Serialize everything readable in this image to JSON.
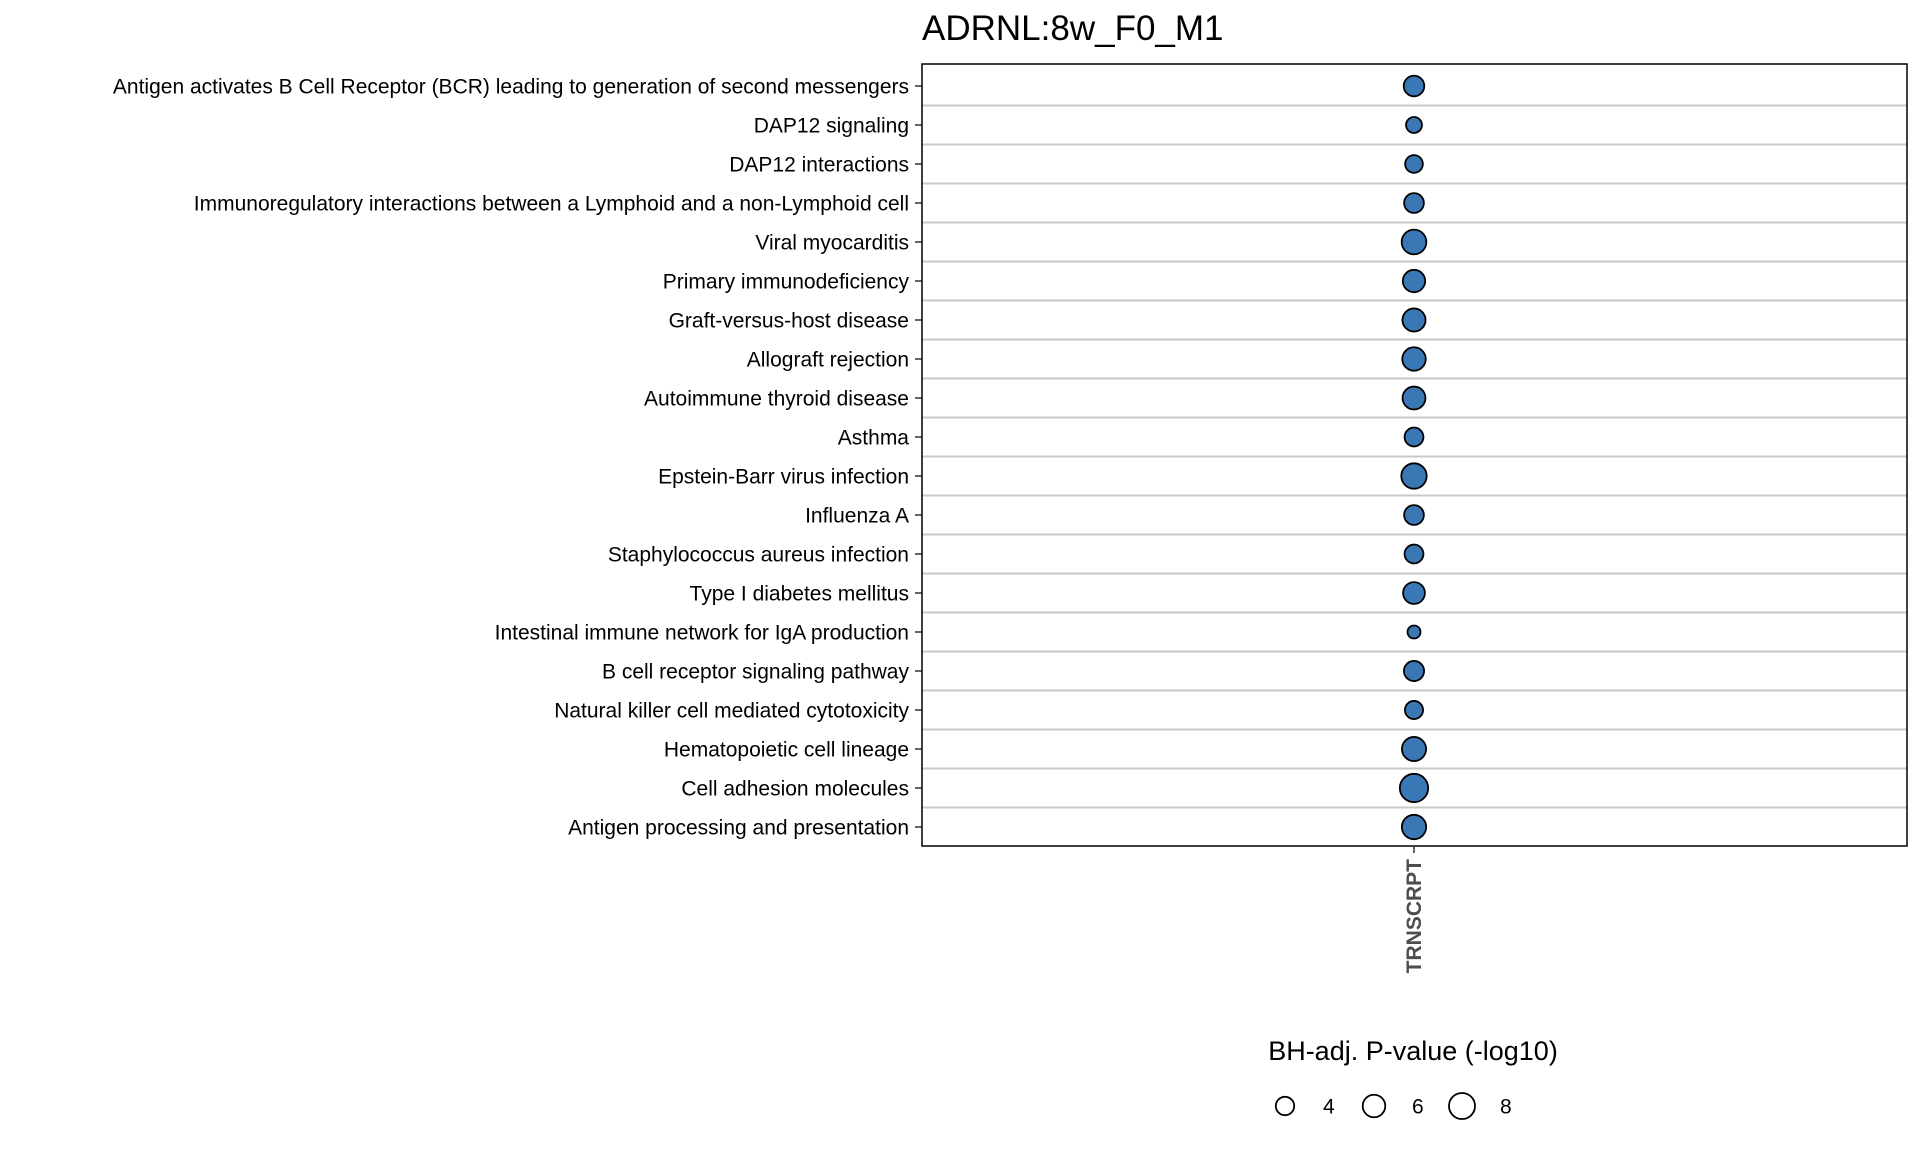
{
  "chart_data": {
    "type": "dot",
    "title": "ADRNL:8w_F0_M1",
    "categories": [
      "TRNSCRPT"
    ],
    "legend": {
      "title": "BH-adj. P-value (-log10)",
      "breaks": [
        4,
        6,
        8
      ],
      "placement": "bottom"
    },
    "fill_color": "#3a78b5",
    "stroke_color": "#000000",
    "grid": true,
    "pathways": [
      {
        "label": "Antigen activates B Cell Receptor (BCR) leading to generation of second messengers",
        "value": 5.0
      },
      {
        "label": "DAP12 signaling",
        "value": 3.0
      },
      {
        "label": "DAP12 interactions",
        "value": 3.7
      },
      {
        "label": "Immunoregulatory interactions between a Lymphoid and a non-Lymphoid cell",
        "value": 4.6
      },
      {
        "label": "Viral myocarditis",
        "value": 7.2
      },
      {
        "label": "Primary immunodeficiency",
        "value": 5.9
      },
      {
        "label": "Graft-versus-host disease",
        "value": 6.3
      },
      {
        "label": "Allograft rejection",
        "value": 6.5
      },
      {
        "label": "Autoimmune thyroid disease",
        "value": 6.2
      },
      {
        "label": "Asthma",
        "value": 4.2
      },
      {
        "label": "Epstein-Barr virus infection",
        "value": 7.6
      },
      {
        "label": "Influenza A",
        "value": 4.6
      },
      {
        "label": "Staphylococcus aureus infection",
        "value": 4.2
      },
      {
        "label": "Type I diabetes mellitus",
        "value": 5.6
      },
      {
        "label": "Intestinal immune network for IgA production",
        "value": 2.0
      },
      {
        "label": "B cell receptor signaling pathway",
        "value": 4.8
      },
      {
        "label": "Natural killer cell mediated cytotoxicity",
        "value": 3.9
      },
      {
        "label": "Hematopoietic cell lineage",
        "value": 6.9
      },
      {
        "label": "Cell adhesion molecules",
        "value": 9.5
      },
      {
        "label": "Antigen processing and presentation",
        "value": 7.0
      }
    ]
  }
}
